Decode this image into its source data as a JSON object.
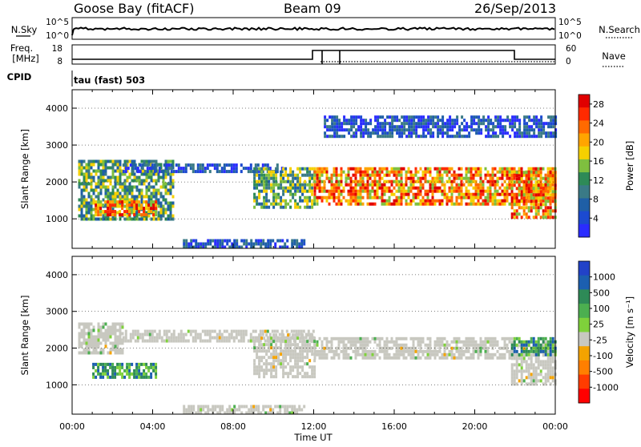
{
  "header": {
    "station": "Goose Bay (fitACF)",
    "beam": "Beam 09",
    "date": "26/Sep/2013"
  },
  "strips": {
    "nsky_label": "N.Sky",
    "nsky_ticks": [
      "10^5",
      "10^0"
    ],
    "nsearch_label": "N.Search",
    "nsearch_ticks": [
      "10^5",
      "10^0"
    ],
    "freq_label_line1": "Freq.",
    "freq_label_line2": "[MHz]",
    "freq_ticks": [
      "18",
      "8"
    ],
    "nave_label": "Nave",
    "nave_ticks": [
      "60",
      "0"
    ],
    "cpid_label": "CPID",
    "cpid_value": "tau (fast) 503"
  },
  "colors": {
    "power_scale": [
      "#2a2cff",
      "#1c4ad0",
      "#1f5fa6",
      "#3a7a86",
      "#2e8a57",
      "#7fbf3f",
      "#f5d000",
      "#ffa500",
      "#ff6a00",
      "#ff2a00",
      "#e00000"
    ],
    "velocity_scale": [
      "#2242c8",
      "#1c5fb0",
      "#2e8a57",
      "#4caf50",
      "#7fd13b",
      "#c8c8c0",
      "#f4a300",
      "#ff7f00",
      "#ff3c00",
      "#ff0000"
    ]
  },
  "chart_data": [
    {
      "type": "heatmap",
      "name": "power-panel",
      "ylabel": "Slant Range [km]",
      "y_ticks": [
        "1000",
        "2000",
        "3000",
        "4000"
      ],
      "ylim": [
        200,
        4500
      ],
      "x_ticks": [
        "00:00",
        "04:00",
        "08:00",
        "12:00",
        "16:00",
        "20:00",
        "00:00"
      ],
      "xlim": [
        0,
        24
      ],
      "colorbar_label": "Power [dB]",
      "colorbar_ticks": [
        "4",
        "8",
        "12",
        "16",
        "20",
        "24",
        "28"
      ],
      "echo_regions": [
        {
          "t0": 0.3,
          "t1": 5.0,
          "r0": 1000,
          "r1": 2600,
          "level": "mid"
        },
        {
          "t0": 1.0,
          "t1": 4.2,
          "r0": 1100,
          "r1": 1500,
          "level": "high"
        },
        {
          "t0": 2.5,
          "t1": 10.5,
          "r0": 2250,
          "r1": 2500,
          "level": "low"
        },
        {
          "t0": 9.0,
          "t1": 12.0,
          "r0": 1300,
          "r1": 2400,
          "level": "mid"
        },
        {
          "t0": 12.0,
          "t1": 24.0,
          "r0": 1400,
          "r1": 2400,
          "level": "high"
        },
        {
          "t0": 21.8,
          "t1": 24.0,
          "r0": 1000,
          "r1": 2300,
          "level": "high"
        },
        {
          "t0": 12.5,
          "t1": 24.0,
          "r0": 3200,
          "r1": 3800,
          "level": "low"
        },
        {
          "t0": 5.5,
          "t1": 11.5,
          "r0": 250,
          "r1": 450,
          "level": "low"
        }
      ]
    },
    {
      "type": "heatmap",
      "name": "velocity-panel",
      "ylabel": "Slant Range [km]",
      "y_ticks": [
        "1000",
        "2000",
        "3000",
        "4000"
      ],
      "ylim": [
        200,
        4500
      ],
      "x_ticks": [
        "00:00",
        "04:00",
        "08:00",
        "12:00",
        "16:00",
        "20:00",
        "00:00"
      ],
      "xlim": [
        0,
        24
      ],
      "xlabel": "Time UT",
      "colorbar_label": "Velocity [m s⁻¹]",
      "colorbar_ticks": [
        "1000",
        "500",
        "100",
        "25",
        "-25",
        "-100",
        "-500",
        "-1000"
      ],
      "echo_regions": [
        {
          "t0": 0.3,
          "t1": 2.5,
          "r0": 1900,
          "r1": 2700,
          "level": "ground"
        },
        {
          "t0": 1.0,
          "t1": 4.2,
          "r0": 1200,
          "r1": 1600,
          "level": "positive"
        },
        {
          "t0": 2.5,
          "t1": 12.0,
          "r0": 2200,
          "r1": 2500,
          "level": "ground"
        },
        {
          "t0": 9.0,
          "t1": 12.0,
          "r0": 1200,
          "r1": 2400,
          "level": "ground"
        },
        {
          "t0": 12.0,
          "t1": 21.8,
          "r0": 1700,
          "r1": 2300,
          "level": "ground"
        },
        {
          "t0": 21.8,
          "t1": 24.0,
          "r0": 1000,
          "r1": 2200,
          "level": "ground"
        },
        {
          "t0": 21.8,
          "t1": 24.0,
          "r0": 1800,
          "r1": 2300,
          "level": "positive"
        },
        {
          "t0": 5.5,
          "t1": 11.5,
          "r0": 250,
          "r1": 450,
          "level": "ground"
        }
      ]
    }
  ]
}
